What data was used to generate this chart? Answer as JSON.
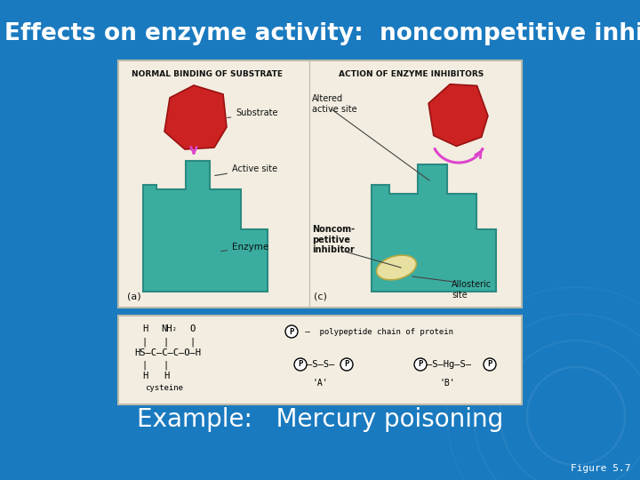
{
  "title": "Effects on enzyme activity:  noncompetitive inhibition",
  "title_color": "#FFFFFF",
  "title_fontsize": 19,
  "background_color": "#1a7abf",
  "example_text": "Example:   Mercury poisoning",
  "example_fontsize": 20,
  "example_color": "#FFFFFF",
  "figure_label": "Figure 5.7",
  "figure_label_fontsize": 8,
  "figure_label_color": "#FFFFFF",
  "enzyme_color": "#3aada0",
  "enzyme_edge": "#2a8a80",
  "substrate_color": "#cc2222",
  "substrate_edge": "#991111",
  "inhibitor_color": "#e8e0a0",
  "inhibitor_edge": "#b8a840",
  "arrow_color": "#dd44cc",
  "box_bg": "#f2ede0",
  "box_edge": "#bbbbaa",
  "label_color": "#111111",
  "line_color": "#444444"
}
